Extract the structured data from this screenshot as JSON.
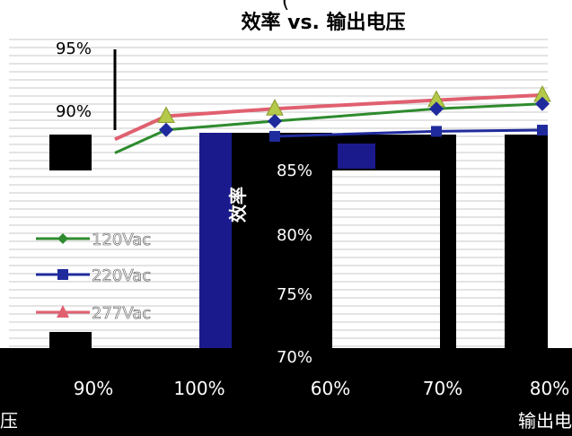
{
  "chart_data": {
    "type": "line",
    "title": "效率 vs. 输出电压",
    "title_fragment_top": "(",
    "ylabel": "效率",
    "xlabel_fragment_right": "输出电",
    "xlabel_fragment_left": "压",
    "y_ticks": [
      "95%",
      "90%",
      "85%",
      "80%",
      "75%",
      "70%"
    ],
    "x_ticks": [
      "90%",
      "100%",
      "60%",
      "70%",
      "80%"
    ],
    "categories": [
      "90%",
      "100%",
      "60%",
      "70%",
      "80%"
    ],
    "ylim": [
      70,
      95
    ],
    "grid": true,
    "legend_position": "left",
    "series": [
      {
        "name": "120Vac",
        "color": "#2e8b2e",
        "marker": "diamond",
        "values": [
          87.5,
          88.5,
          89.2,
          90.2,
          90.6
        ]
      },
      {
        "name": "220Vac",
        "color": "#1f2b9c",
        "marker": "square",
        "values": [
          87.6,
          88.3,
          88.7,
          89.1,
          89.2
        ]
      },
      {
        "name": "277Vac",
        "color": "#e06070",
        "marker": "triangle",
        "values": [
          88.6,
          89.6,
          90.2,
          90.9,
          91.3
        ]
      }
    ]
  }
}
